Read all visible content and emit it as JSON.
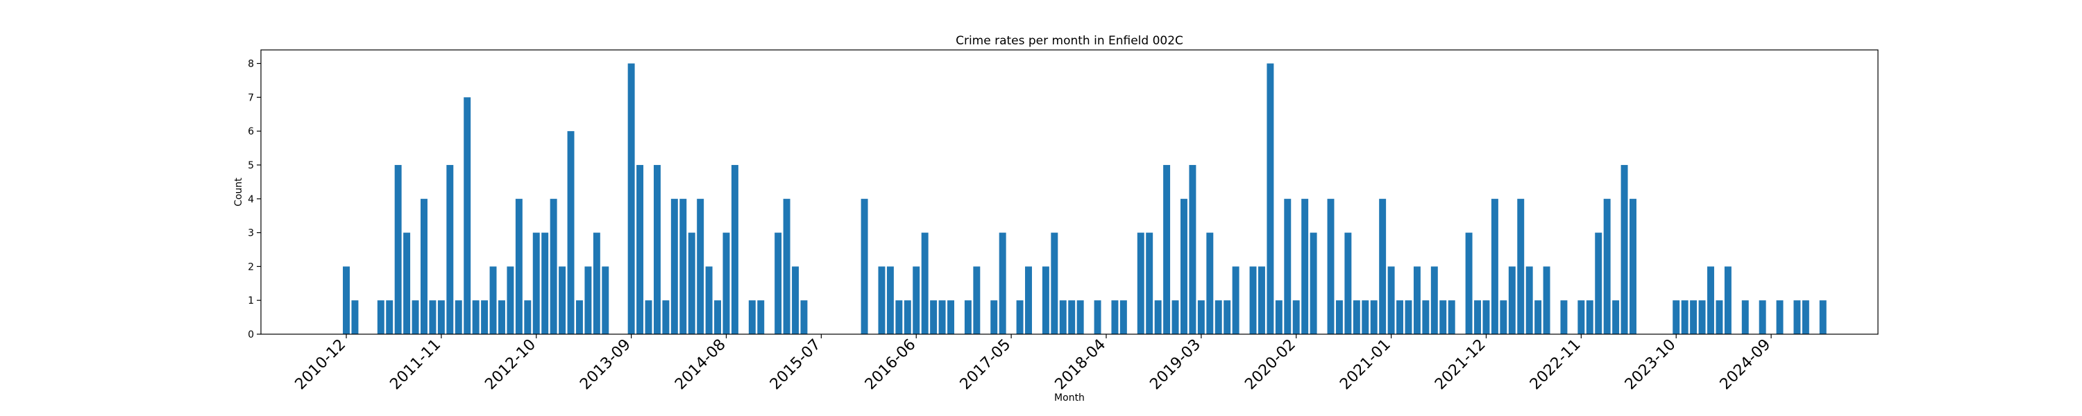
{
  "chart_data": {
    "type": "bar",
    "title": "Crime rates per month in Enfield 002C",
    "xlabel": "Month",
    "ylabel": "Count",
    "ylim": [
      0,
      8.4
    ],
    "yticks": [
      0,
      1,
      2,
      3,
      4,
      5,
      6,
      7,
      8
    ],
    "xtick_labels": [
      "2010-12",
      "2011-11",
      "2012-10",
      "2013-09",
      "2014-08",
      "2015-07",
      "2016-06",
      "2017-05",
      "2018-04",
      "2019-03",
      "2020-02",
      "2021-01",
      "2021-12",
      "2022-11",
      "2023-10",
      "2024-09"
    ],
    "grid": false,
    "color": "#1f77b4",
    "x": [
      "2010-12",
      "2011-01",
      "2011-02",
      "2011-03",
      "2011-04",
      "2011-05",
      "2011-06",
      "2011-07",
      "2011-08",
      "2011-09",
      "2011-10",
      "2011-11",
      "2011-12",
      "2012-01",
      "2012-02",
      "2012-03",
      "2012-04",
      "2012-05",
      "2012-06",
      "2012-07",
      "2012-08",
      "2012-09",
      "2012-10",
      "2012-11",
      "2012-12",
      "2013-01",
      "2013-02",
      "2013-03",
      "2013-04",
      "2013-05",
      "2013-06",
      "2013-07",
      "2013-08",
      "2013-09",
      "2013-10",
      "2013-11",
      "2013-12",
      "2014-01",
      "2014-02",
      "2014-03",
      "2014-04",
      "2014-05",
      "2014-06",
      "2014-07",
      "2014-08",
      "2014-09",
      "2014-10",
      "2014-11",
      "2014-12",
      "2015-01",
      "2015-02",
      "2015-03",
      "2015-04",
      "2015-05",
      "2015-06",
      "2015-07",
      "2015-08",
      "2015-09",
      "2015-10",
      "2015-11",
      "2015-12",
      "2016-01",
      "2016-02",
      "2016-03",
      "2016-04",
      "2016-05",
      "2016-06",
      "2016-07",
      "2016-08",
      "2016-09",
      "2016-10",
      "2016-11",
      "2016-12",
      "2017-01",
      "2017-02",
      "2017-03",
      "2017-04",
      "2017-05",
      "2017-06",
      "2017-07",
      "2017-08",
      "2017-09",
      "2017-10",
      "2017-11",
      "2017-12",
      "2018-01",
      "2018-02",
      "2018-03",
      "2018-04",
      "2018-05",
      "2018-06",
      "2018-07",
      "2018-08",
      "2018-09",
      "2018-10",
      "2018-11",
      "2018-12",
      "2019-01",
      "2019-02",
      "2019-03",
      "2019-04",
      "2019-05",
      "2019-06",
      "2019-07",
      "2019-08",
      "2019-09",
      "2019-10",
      "2019-11",
      "2019-12",
      "2020-01",
      "2020-02",
      "2020-03",
      "2020-04",
      "2020-05",
      "2020-06",
      "2020-07",
      "2020-08",
      "2020-09",
      "2020-10",
      "2020-11",
      "2020-12",
      "2021-01",
      "2021-02",
      "2021-03",
      "2021-04",
      "2021-05",
      "2021-06",
      "2021-07",
      "2021-08",
      "2021-09",
      "2021-10",
      "2021-11",
      "2021-12",
      "2022-01",
      "2022-02",
      "2022-03",
      "2022-04",
      "2022-05",
      "2022-06",
      "2022-07",
      "2022-08",
      "2022-09",
      "2022-10",
      "2022-11",
      "2022-12",
      "2023-01",
      "2023-02",
      "2023-03",
      "2023-04",
      "2023-05",
      "2023-06",
      "2023-07",
      "2023-08",
      "2023-09",
      "2023-10",
      "2023-11",
      "2023-12",
      "2024-01",
      "2024-02",
      "2024-03",
      "2024-04",
      "2024-05",
      "2024-06",
      "2024-07",
      "2024-08",
      "2024-09",
      "2024-10",
      "2024-11",
      "2024-12",
      "2025-01",
      "2025-02",
      "2025-03"
    ],
    "values": [
      2,
      1,
      0,
      0,
      1,
      1,
      5,
      3,
      1,
      4,
      1,
      1,
      5,
      1,
      7,
      1,
      1,
      2,
      1,
      2,
      4,
      1,
      3,
      3,
      4,
      2,
      6,
      1,
      2,
      3,
      2,
      0,
      0,
      8,
      5,
      1,
      5,
      1,
      4,
      4,
      3,
      4,
      2,
      1,
      3,
      5,
      0,
      1,
      1,
      0,
      3,
      4,
      2,
      1,
      0,
      0,
      0,
      0,
      0,
      0,
      4,
      0,
      2,
      2,
      1,
      1,
      2,
      3,
      1,
      1,
      1,
      0,
      1,
      2,
      0,
      1,
      3,
      0,
      1,
      2,
      0,
      2,
      3,
      1,
      1,
      1,
      0,
      1,
      0,
      1,
      1,
      0,
      3,
      3,
      1,
      5,
      1,
      4,
      5,
      1,
      3,
      1,
      1,
      2,
      0,
      2,
      2,
      8,
      1,
      4,
      1,
      4,
      3,
      0,
      4,
      1,
      3,
      1,
      1,
      1,
      4,
      2,
      1,
      1,
      2,
      1,
      2,
      1,
      1,
      0,
      3,
      1,
      1,
      4,
      1,
      2,
      4,
      2,
      1,
      2,
      0,
      1,
      0,
      1,
      1,
      3,
      4,
      1,
      5,
      4,
      0,
      0,
      0,
      0,
      1,
      1,
      1,
      1,
      2,
      1,
      2,
      0,
      1,
      0,
      1,
      0,
      1,
      0,
      1,
      1,
      0,
      1
    ]
  }
}
